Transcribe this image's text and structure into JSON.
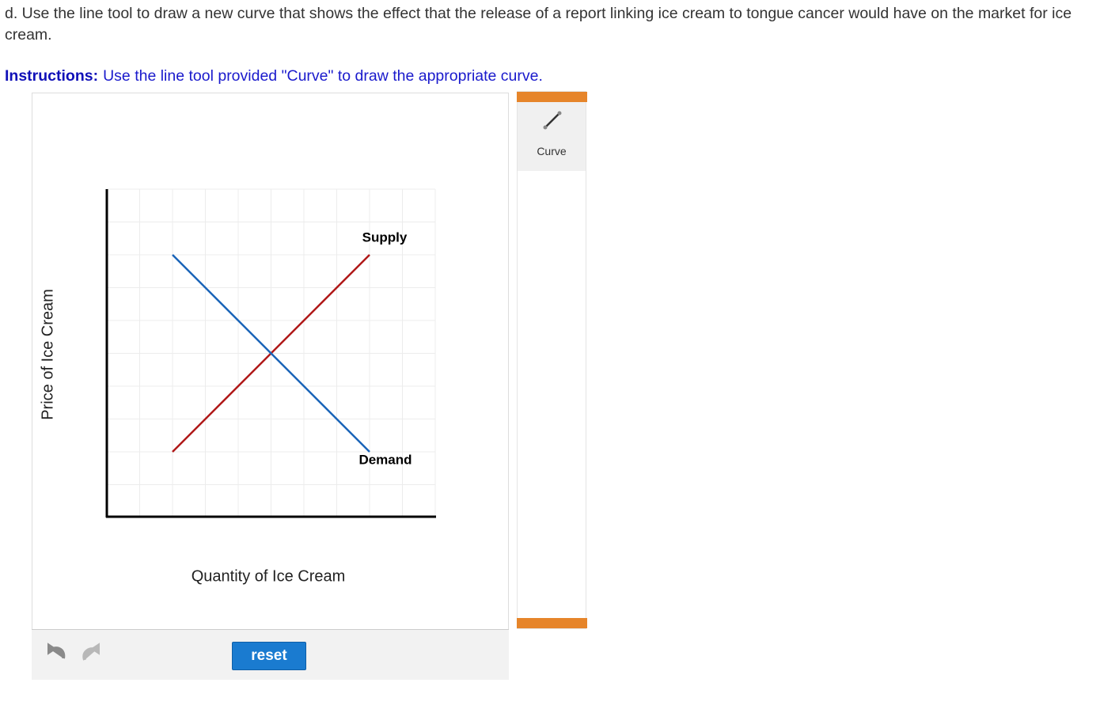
{
  "question": "d. Use the line tool to draw a new curve that shows the effect that the release of a report linking ice cream to tongue cancer would have on the market for ice cream.",
  "instructions": {
    "label": "Instructions:",
    "text": "Use the line tool provided \"Curve\" to draw the appropriate curve."
  },
  "graph": {
    "y_axis_label": "Price of Ice Cream",
    "x_axis_label": "Quantity of Ice Cream",
    "curves": [
      {
        "label": "Supply"
      },
      {
        "label": "Demand"
      }
    ]
  },
  "toolbar": {
    "tools": [
      "Curve"
    ]
  },
  "controls": {
    "reset": "reset"
  }
}
